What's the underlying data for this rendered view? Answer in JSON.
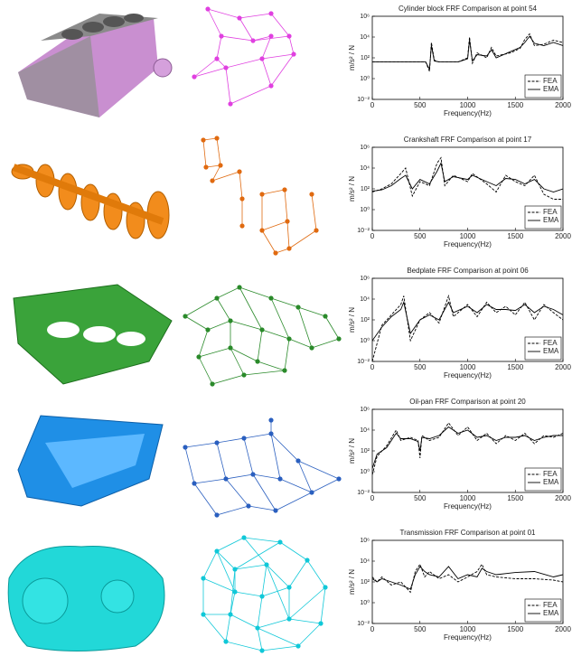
{
  "chart_data": [
    {
      "type": "line",
      "title": "Cylinder block FRF Comparison at point 54",
      "xlabel": "Frequency(Hz)",
      "ylabel": "m/s² / N",
      "yscale": "log",
      "legend": "lower right",
      "xlim": [
        0,
        2000
      ],
      "xticks": [
        0,
        500,
        1000,
        1500,
        2000
      ],
      "ylim": [
        0.01,
        1000000
      ],
      "yticks": [
        {
          "value": 0.01,
          "label": "10⁻²"
        },
        {
          "value": 1,
          "label": "10⁰"
        },
        {
          "value": 100,
          "label": "10²"
        },
        {
          "value": 10000,
          "label": "10⁴"
        },
        {
          "value": 1000000,
          "label": "10⁶"
        }
      ],
      "x": [
        0,
        200,
        400,
        560,
        600,
        620,
        650,
        700,
        900,
        1000,
        1020,
        1050,
        1100,
        1200,
        1250,
        1300,
        1450,
        1550,
        1600,
        1650,
        1700,
        1800,
        1900,
        2000
      ],
      "series": [
        {
          "name": "FEA",
          "color": "#000000",
          "dash": true,
          "values": [
            40,
            40,
            40,
            40,
            5,
            3000,
            60,
            40,
            40,
            100,
            10000,
            30,
            300,
            100,
            1000,
            150,
            300,
            800,
            6000,
            20000,
            1500,
            2000,
            5000,
            3000
          ]
        },
        {
          "name": "EMA",
          "color": "#000000",
          "dash": false,
          "values": [
            40,
            40,
            40,
            40,
            8,
            1500,
            50,
            40,
            40,
            80,
            5000,
            50,
            200,
            150,
            600,
            100,
            400,
            1000,
            3000,
            12000,
            2500,
            1500,
            3000,
            1500
          ]
        }
      ]
    },
    {
      "type": "line",
      "title": "Crankshaft FRF Comparison at point 17",
      "xlabel": "Frequency(Hz)",
      "ylabel": "m/s² / N",
      "yscale": "log",
      "legend": "lower right",
      "xlim": [
        0,
        2000
      ],
      "xticks": [
        0,
        500,
        1000,
        1500,
        2000
      ],
      "ylim": [
        0.01,
        1000000
      ],
      "yticks": [
        {
          "value": 0.01,
          "label": "10⁻²"
        },
        {
          "value": 1,
          "label": "10⁰"
        },
        {
          "value": 100,
          "label": "10²"
        },
        {
          "value": 10000,
          "label": "10⁴"
        },
        {
          "value": 1000000,
          "label": "10⁶"
        }
      ],
      "x": [
        0,
        100,
        200,
        300,
        350,
        420,
        500,
        600,
        680,
        720,
        760,
        850,
        1000,
        1050,
        1200,
        1300,
        1400,
        1500,
        1600,
        1700,
        1800,
        1900,
        2000
      ],
      "series": [
        {
          "name": "FEA",
          "color": "#000000",
          "dash": true,
          "values": [
            50,
            100,
            300,
            3000,
            10000,
            20,
            500,
            200,
            30000,
            100000,
            200,
            2000,
            500,
            3000,
            300,
            50,
            2000,
            500,
            200,
            2000,
            30,
            10,
            10
          ]
        },
        {
          "name": "EMA",
          "color": "#000000",
          "dash": false,
          "values": [
            60,
            80,
            200,
            1000,
            2000,
            100,
            800,
            300,
            5000,
            30000,
            500,
            1500,
            800,
            2000,
            500,
            200,
            1000,
            800,
            300,
            800,
            100,
            50,
            100
          ]
        }
      ]
    },
    {
      "type": "line",
      "title": "Bedplate FRF Comparison at point 06",
      "xlabel": "Frequency(Hz)",
      "ylabel": "m/s² / N",
      "yscale": "log",
      "legend": "lower right",
      "xlim": [
        0,
        2000
      ],
      "xticks": [
        0,
        500,
        1000,
        1500,
        2000
      ],
      "ylim": [
        0.01,
        1000000
      ],
      "yticks": [
        {
          "value": 0.01,
          "label": "10⁻²"
        },
        {
          "value": 1,
          "label": "10⁰"
        },
        {
          "value": 100,
          "label": "10²"
        },
        {
          "value": 10000,
          "label": "10⁴"
        },
        {
          "value": 1000000,
          "label": "10⁶"
        }
      ],
      "x": [
        0,
        100,
        200,
        300,
        330,
        400,
        500,
        600,
        700,
        800,
        850,
        1000,
        1100,
        1200,
        1300,
        1400,
        1500,
        1600,
        1700,
        1800,
        1900,
        2000
      ],
      "series": [
        {
          "name": "FEA",
          "color": "#000000",
          "dash": true,
          "values": [
            0.01,
            30,
            300,
            3000,
            20000,
            1,
            100,
            500,
            50,
            20000,
            200,
            3000,
            200,
            5000,
            500,
            2000,
            300,
            5000,
            100,
            3000,
            500,
            100
          ]
        },
        {
          "name": "EMA",
          "color": "#000000",
          "dash": false,
          "values": [
            1,
            20,
            200,
            1000,
            5000,
            5,
            100,
            300,
            100,
            5000,
            500,
            2000,
            500,
            3000,
            1000,
            1000,
            800,
            3000,
            500,
            2000,
            1000,
            300
          ]
        }
      ]
    },
    {
      "type": "line",
      "title": "Oil-pan FRF Comparison at point 20",
      "xlabel": "Frequency(Hz)",
      "ylabel": "m/s² / N",
      "yscale": "log",
      "legend": "lower right",
      "xlim": [
        0,
        2000
      ],
      "xticks": [
        0,
        500,
        1000,
        1500,
        2000
      ],
      "ylim": [
        0.01,
        1000000
      ],
      "yticks": [
        {
          "value": 0.01,
          "label": "10⁻²"
        },
        {
          "value": 1,
          "label": "10⁰"
        },
        {
          "value": 100,
          "label": "10²"
        },
        {
          "value": 10000,
          "label": "10⁴"
        },
        {
          "value": 1000000,
          "label": "10⁶"
        }
      ],
      "x": [
        0,
        50,
        150,
        250,
        300,
        400,
        480,
        500,
        520,
        600,
        700,
        800,
        900,
        1000,
        1100,
        1200,
        1300,
        1400,
        1500,
        1600,
        1700,
        1800,
        1900,
        2000
      ],
      "series": [
        {
          "name": "FEA",
          "color": "#000000",
          "dash": true,
          "values": [
            0.5,
            30,
            300,
            10000,
            1000,
            2000,
            1000,
            20,
            3000,
            1000,
            2000,
            50000,
            3000,
            20000,
            1000,
            5000,
            500,
            3000,
            1000,
            5000,
            500,
            3000,
            2000,
            5000
          ]
        },
        {
          "name": "EMA",
          "color": "#000000",
          "dash": false,
          "values": [
            2,
            50,
            200,
            5000,
            1500,
            1500,
            800,
            100,
            2000,
            1500,
            3000,
            20000,
            5000,
            10000,
            2000,
            3000,
            1000,
            2000,
            2000,
            3000,
            1000,
            2000,
            3000,
            3000
          ]
        }
      ]
    },
    {
      "type": "line",
      "title": "Transmission FRF Comparison at point 01",
      "xlabel": "Frequency(Hz)",
      "ylabel": "m/s² / N",
      "yscale": "log",
      "legend": "lower right",
      "xlim": [
        0,
        2000
      ],
      "xticks": [
        0,
        500,
        1000,
        1500,
        2000
      ],
      "ylim": [
        0.01,
        1000000
      ],
      "yticks": [
        {
          "value": 0.01,
          "label": "10⁻²"
        },
        {
          "value": 1,
          "label": "10⁰"
        },
        {
          "value": 100,
          "label": "10²"
        },
        {
          "value": 10000,
          "label": "10⁴"
        },
        {
          "value": 1000000,
          "label": "10⁶"
        }
      ],
      "x": [
        0,
        50,
        100,
        200,
        300,
        400,
        450,
        500,
        550,
        600,
        700,
        800,
        900,
        1000,
        1100,
        1150,
        1200,
        1300,
        1500,
        1700,
        1900,
        2000
      ],
      "series": [
        {
          "name": "FEA",
          "color": "#000000",
          "dash": true,
          "values": [
            300,
            100,
            300,
            50,
            100,
            10,
            1000,
            5000,
            300,
            1000,
            200,
            500,
            100,
            300,
            1000,
            5000,
            500,
            300,
            200,
            200,
            150,
            100
          ]
        },
        {
          "name": "EMA",
          "color": "#000000",
          "dash": false,
          "values": [
            200,
            100,
            200,
            100,
            50,
            20,
            500,
            3000,
            1000,
            500,
            300,
            3000,
            200,
            500,
            300,
            2000,
            1000,
            500,
            800,
            1000,
            300,
            500
          ]
        }
      ]
    }
  ]
}
